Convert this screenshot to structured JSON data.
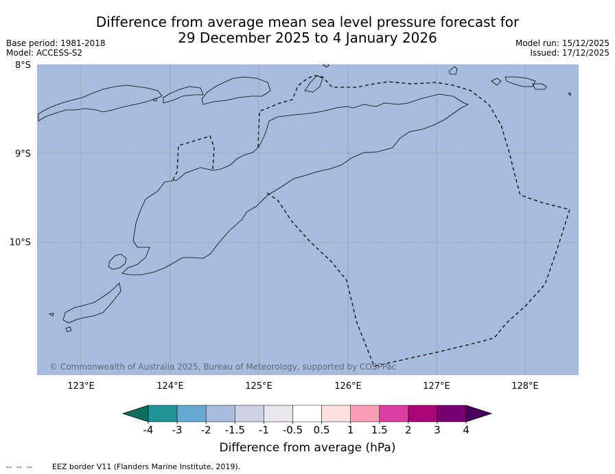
{
  "title": {
    "line1": "Difference from average mean sea level pressure forecast for",
    "line2": "29 December 2025 to 4 January 2026"
  },
  "info_left": {
    "base_period": "Base period: 1981-2018",
    "model": "Model: ACCESS-S2"
  },
  "info_right": {
    "model_run": "Model run: 15/12/2025",
    "issued": "Issued: 17/12/2025"
  },
  "map": {
    "lat_labels": [
      "8°S",
      "9°S",
      "10°S"
    ],
    "lon_labels": [
      "123°E",
      "124°E",
      "125°E",
      "126°E",
      "127°E",
      "128°E"
    ],
    "copyright": "© Commonwealth of Australia 2025, Bureau of Meteorology, supported by COSPPac",
    "sea_color": "#a6bcdc"
  },
  "colorbar": {
    "labels": [
      "-4",
      "-3",
      "-2",
      "-1.5",
      "-1",
      "-0.5",
      "0.5",
      "1",
      "1.5",
      "2",
      "3",
      "4"
    ],
    "colors": [
      "#0c6f5e",
      "#1f9397",
      "#68a9d3",
      "#a6bcdc",
      "#d0d1e7",
      "#ebe7ee",
      "#ffffff",
      "#ffe0df",
      "#fb9eb8",
      "#de3da3",
      "#ab0378",
      "#790072",
      "#4b0060"
    ],
    "title": "Difference from average (hPa)"
  },
  "footer": {
    "legend_symbol": "--  --  --",
    "legend_text": "EEZ border V11 (Flanders Marine Institute, 2019)."
  }
}
